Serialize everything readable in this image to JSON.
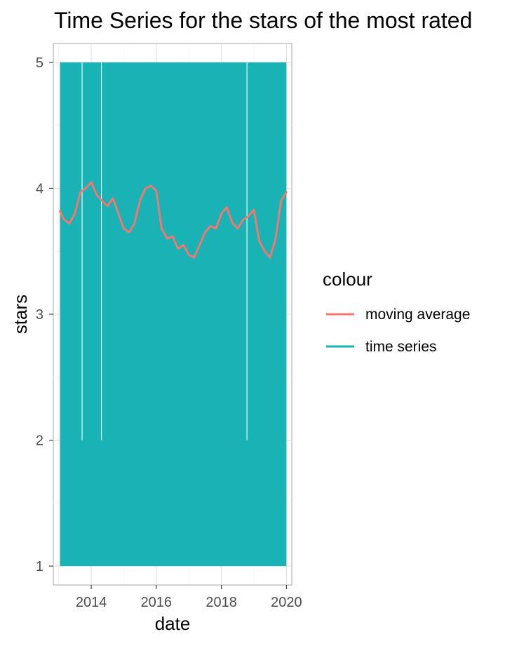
{
  "chart_data": {
    "type": "line",
    "title": "Time Series for the stars of the most rated",
    "xlabel": "date",
    "ylabel": "stars",
    "x_axis_type": "date",
    "xlim": [
      "2012-11-01",
      "2020-03-01"
    ],
    "ylim": [
      0.85,
      5.15
    ],
    "x_ticks": [
      {
        "value": "2014-01-01",
        "label": "2014"
      },
      {
        "value": "2016-01-01",
        "label": "2016"
      },
      {
        "value": "2018-01-01",
        "label": "2018"
      },
      {
        "value": "2020-01-01",
        "label": "2020"
      }
    ],
    "y_ticks": [
      1,
      2,
      3,
      4,
      5
    ],
    "grid": true,
    "legend": {
      "title": "colour",
      "position": "right",
      "entries": [
        {
          "label": "moving average",
          "color": "#F8766D"
        },
        {
          "label": "time series",
          "color": "#19B3B6"
        }
      ]
    },
    "series": [
      {
        "name": "time series",
        "color": "#19B3B6",
        "kind": "daily ratings filling range",
        "x_range": [
          "2013-01-15",
          "2019-12-31"
        ],
        "y_range": [
          1,
          5
        ],
        "gaps": [
          {
            "date": "2013-09-20",
            "from": 2,
            "to": 5
          },
          {
            "date": "2014-04-25",
            "from": 2,
            "to": 5
          },
          {
            "date": "2018-10-15",
            "from": 2,
            "to": 5
          }
        ]
      },
      {
        "name": "moving average",
        "color": "#F8766D",
        "x": [
          "2013-01-15",
          "2013-03-01",
          "2013-05-01",
          "2013-07-01",
          "2013-09-01",
          "2013-11-01",
          "2014-01-01",
          "2014-03-01",
          "2014-05-01",
          "2014-07-01",
          "2014-09-01",
          "2014-11-01",
          "2015-01-01",
          "2015-03-01",
          "2015-05-01",
          "2015-07-01",
          "2015-09-01",
          "2015-11-01",
          "2016-01-01",
          "2016-03-01",
          "2016-05-01",
          "2016-07-01",
          "2016-09-01",
          "2016-11-01",
          "2017-01-01",
          "2017-03-01",
          "2017-05-01",
          "2017-07-01",
          "2017-09-01",
          "2017-11-01",
          "2018-01-01",
          "2018-03-01",
          "2018-05-01",
          "2018-07-01",
          "2018-09-01",
          "2018-11-01",
          "2019-01-01",
          "2019-03-01",
          "2019-05-01",
          "2019-07-01",
          "2019-09-01",
          "2019-11-01",
          "2019-12-31"
        ],
        "values": [
          3.82,
          3.75,
          3.72,
          3.8,
          3.97,
          4.0,
          4.05,
          3.95,
          3.9,
          3.86,
          3.92,
          3.8,
          3.68,
          3.65,
          3.72,
          3.9,
          4.0,
          4.02,
          3.98,
          3.68,
          3.6,
          3.62,
          3.52,
          3.55,
          3.47,
          3.45,
          3.55,
          3.65,
          3.7,
          3.68,
          3.8,
          3.85,
          3.73,
          3.68,
          3.75,
          3.78,
          3.83,
          3.58,
          3.5,
          3.45,
          3.6,
          3.9,
          3.97
        ]
      }
    ]
  }
}
